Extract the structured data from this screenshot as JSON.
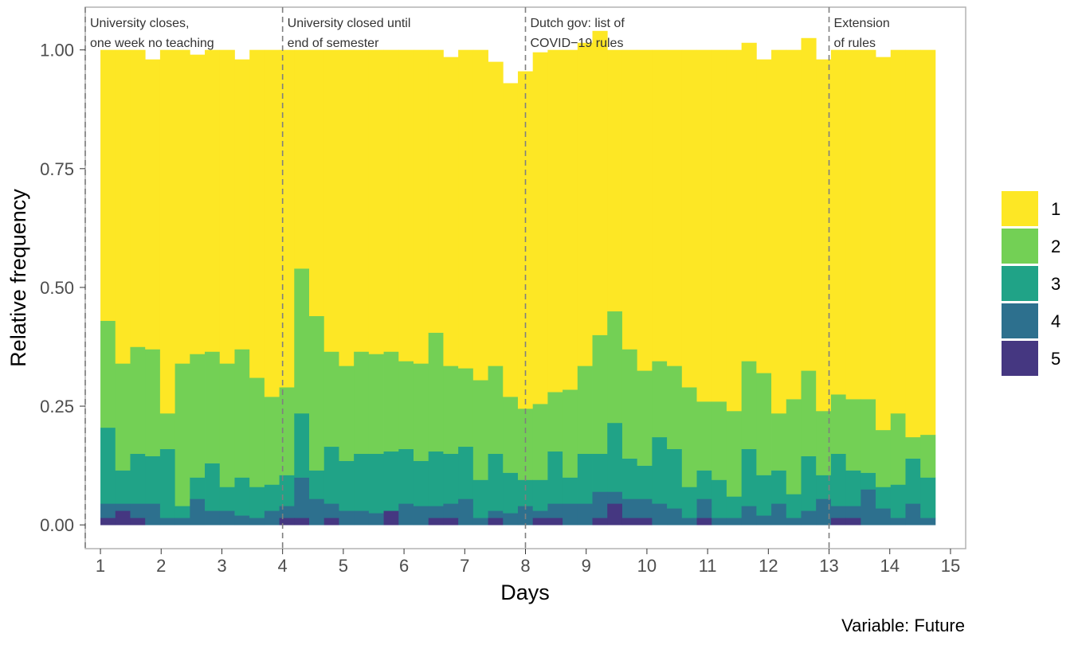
{
  "chart_data": {
    "type": "bar",
    "stacked": true,
    "xlabel": "Days",
    "ylabel": "Relative frequency",
    "caption": "Variable: Future",
    "xlim": [
      0.75,
      15.25
    ],
    "ylim": [
      -0.05,
      1.09
    ],
    "x_ticks": [
      1,
      2,
      3,
      4,
      5,
      6,
      7,
      8,
      9,
      10,
      11,
      12,
      13,
      14,
      15
    ],
    "x_tick_labels": [
      "1",
      "2",
      "3",
      "4",
      "5",
      "6",
      "7",
      "8",
      "9",
      "10",
      "11",
      "12",
      "13",
      "14",
      "15"
    ],
    "y_ticks": [
      0,
      0.25,
      0.5,
      0.75,
      1
    ],
    "y_tick_labels": [
      "0.00",
      "0.25",
      "0.50",
      "0.75",
      "1.00"
    ],
    "bin_range": [
      1,
      14.75
    ],
    "bins": 56,
    "legend": [
      {
        "label": "1",
        "color": "#FDE725"
      },
      {
        "label": "2",
        "color": "#73D055"
      },
      {
        "label": "3",
        "color": "#20A387"
      },
      {
        "label": "4",
        "color": "#2D708E"
      },
      {
        "label": "5",
        "color": "#453781"
      }
    ],
    "vlines": [
      {
        "x": 0.75,
        "label_lines": [
          "University closes,",
          "one week no teaching"
        ]
      },
      {
        "x": 4,
        "label_lines": [
          "University closed until",
          "end of semester"
        ]
      },
      {
        "x": 8,
        "label_lines": [
          "Dutch gov: list of",
          "COVID−19 rules"
        ]
      },
      {
        "x": 13,
        "label_lines": [
          "Extension",
          "of rules"
        ]
      }
    ],
    "series": [
      {
        "name": "5",
        "values": [
          0.015,
          0.03,
          0.015,
          0,
          0,
          0,
          0,
          0,
          0,
          0,
          0,
          0,
          0.015,
          0.015,
          0,
          0.015,
          0,
          0,
          0,
          0.03,
          0,
          0,
          0.015,
          0.015,
          0,
          0,
          0.015,
          0,
          0,
          0.015,
          0.015,
          0,
          0,
          0.015,
          0.045,
          0.015,
          0.015,
          0,
          0,
          0,
          0.015,
          0,
          0,
          0,
          0,
          0,
          0,
          0,
          0,
          0.015,
          0.015,
          0,
          0,
          0,
          0,
          0
        ]
      },
      {
        "name": "4",
        "values": [
          0.03,
          0.015,
          0.03,
          0.045,
          0.015,
          0.015,
          0.055,
          0.03,
          0.03,
          0.02,
          0.015,
          0.03,
          0.025,
          0.085,
          0.055,
          0.03,
          0.03,
          0.03,
          0.025,
          0,
          0.045,
          0.04,
          0.025,
          0.03,
          0.055,
          0.015,
          0.015,
          0.025,
          0.04,
          0.015,
          0.03,
          0.045,
          0.045,
          0.055,
          0.025,
          0.04,
          0.04,
          0.045,
          0.035,
          0.015,
          0.04,
          0.015,
          0.015,
          0.04,
          0.02,
          0.045,
          0.015,
          0.03,
          0.055,
          0.025,
          0.025,
          0.075,
          0.035,
          0.015,
          0.045,
          0.015
        ]
      },
      {
        "name": "3",
        "values": [
          0.16,
          0.07,
          0.105,
          0.1,
          0.145,
          0.025,
          0.045,
          0.1,
          0.05,
          0.08,
          0.065,
          0.055,
          0.065,
          0.135,
          0.06,
          0.12,
          0.105,
          0.12,
          0.125,
          0.125,
          0.115,
          0.095,
          0.115,
          0.105,
          0.11,
          0.08,
          0.12,
          0.085,
          0.055,
          0.065,
          0.11,
          0.055,
          0.105,
          0.08,
          0.145,
          0.085,
          0.07,
          0.14,
          0.125,
          0.065,
          0.06,
          0.08,
          0.045,
          0.12,
          0.085,
          0.07,
          0.05,
          0.115,
          0.05,
          0.11,
          0.075,
          0.035,
          0.045,
          0.07,
          0.095,
          0.085
        ]
      },
      {
        "name": "2",
        "values": [
          0.225,
          0.225,
          0.225,
          0.225,
          0.075,
          0.3,
          0.26,
          0.235,
          0.26,
          0.27,
          0.23,
          0.185,
          0.185,
          0.305,
          0.325,
          0.2,
          0.2,
          0.215,
          0.21,
          0.21,
          0.185,
          0.205,
          0.25,
          0.185,
          0.165,
          0.21,
          0.185,
          0.16,
          0.15,
          0.16,
          0.125,
          0.185,
          0.185,
          0.25,
          0.235,
          0.23,
          0.2,
          0.16,
          0.175,
          0.21,
          0.145,
          0.165,
          0.18,
          0.185,
          0.215,
          0.12,
          0.2,
          0.18,
          0.135,
          0.125,
          0.15,
          0.155,
          0.12,
          0.15,
          0.045,
          0.09
        ]
      },
      {
        "name": "1",
        "values": [
          0.57,
          0.66,
          0.625,
          0.61,
          0.765,
          0.66,
          0.63,
          0.635,
          0.66,
          0.61,
          0.69,
          0.73,
          0.71,
          0.46,
          0.56,
          0.635,
          0.665,
          0.635,
          0.64,
          0.635,
          0.655,
          0.66,
          0.595,
          0.65,
          0.67,
          0.695,
          0.64,
          0.66,
          0.71,
          0.74,
          0.72,
          0.715,
          0.68,
          0.64,
          0.55,
          0.63,
          0.675,
          0.655,
          0.665,
          0.71,
          0.74,
          0.74,
          0.76,
          0.67,
          0.66,
          0.765,
          0.735,
          0.7,
          0.74,
          0.725,
          0.735,
          0.735,
          0.785,
          0.765,
          0.815,
          0.81
        ]
      }
    ]
  }
}
